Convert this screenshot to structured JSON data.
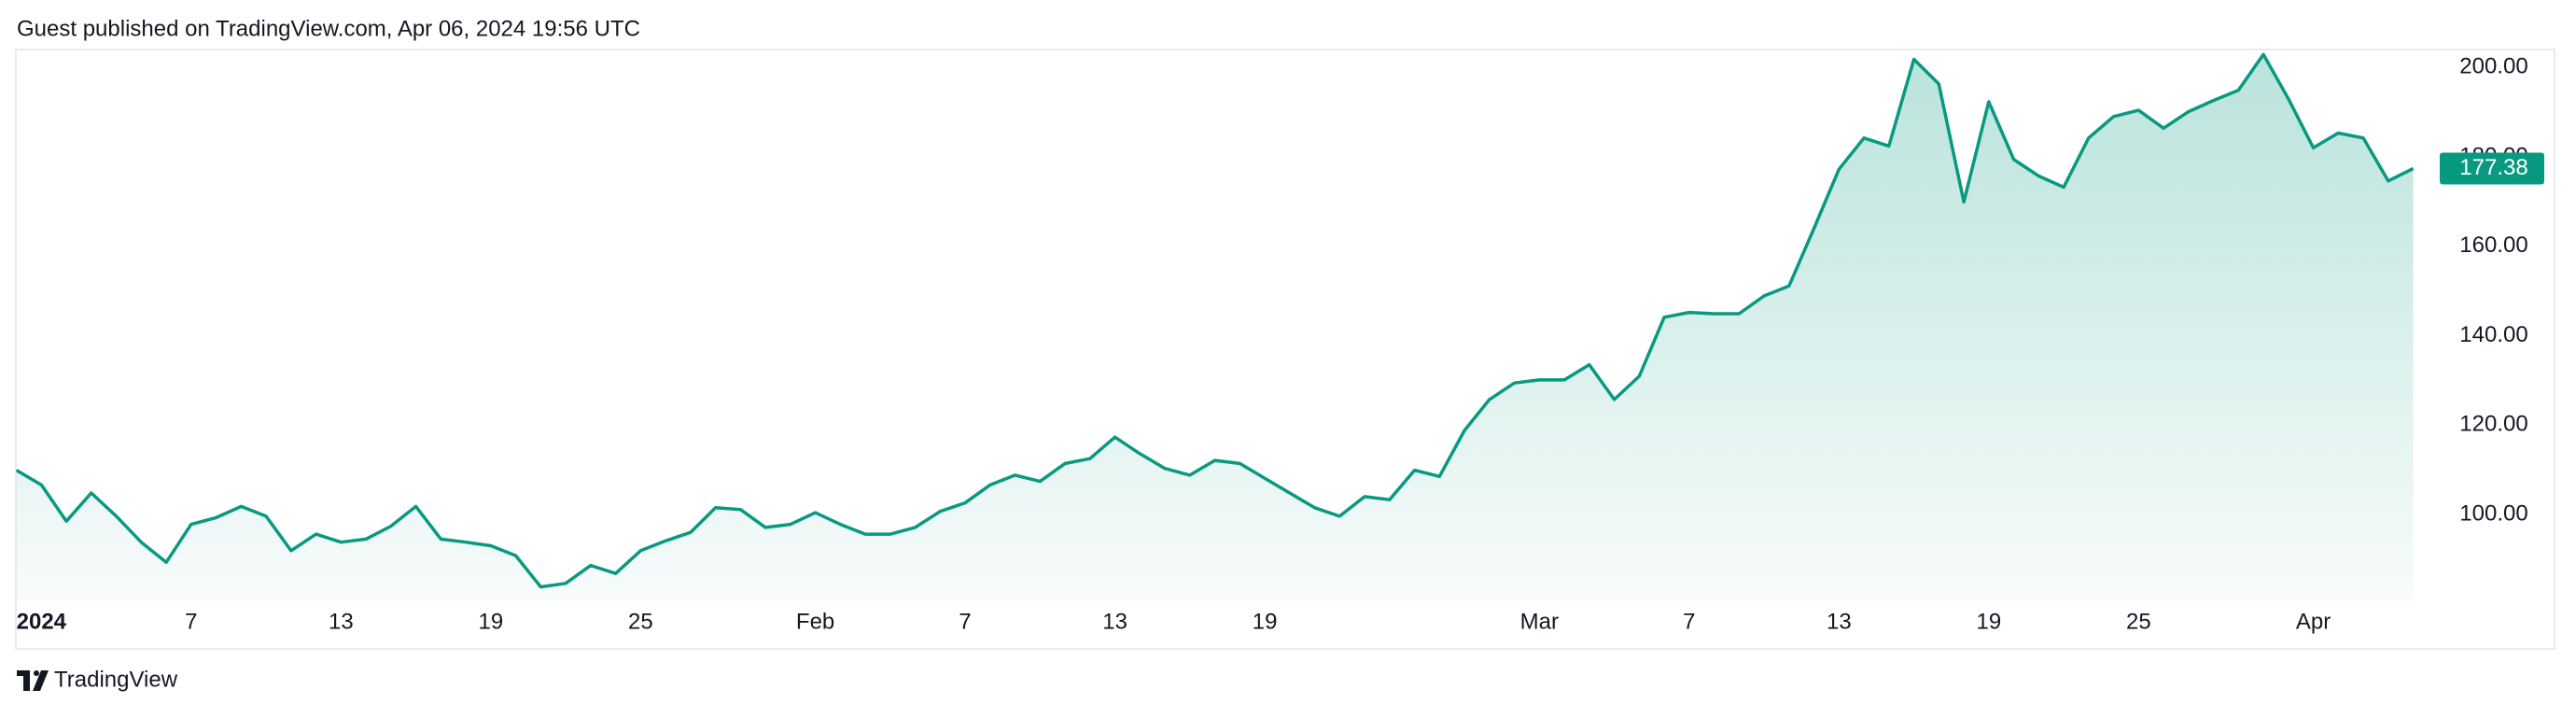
{
  "chart_data": {
    "type": "area",
    "title": "Guest published on TradingView.com, Apr 06, 2024 19:56 UTC",
    "source": "TradingView",
    "color": "#089981",
    "grid": false,
    "categories": [
      null,
      "2024",
      null,
      null,
      null,
      null,
      null,
      "7",
      null,
      null,
      null,
      null,
      null,
      "13",
      null,
      null,
      null,
      null,
      null,
      "19",
      null,
      null,
      null,
      null,
      null,
      "25",
      null,
      null,
      null,
      null,
      null,
      null,
      "Feb",
      null,
      null,
      null,
      null,
      null,
      "7",
      null,
      null,
      null,
      null,
      null,
      "13",
      null,
      null,
      null,
      null,
      null,
      "19",
      null,
      null,
      null,
      null,
      null,
      null,
      null,
      null,
      null,
      null,
      "Mar",
      null,
      null,
      null,
      null,
      null,
      "7",
      null,
      null,
      null,
      null,
      null,
      "13",
      null,
      null,
      null,
      null,
      null,
      "19",
      null,
      null,
      null,
      null,
      null,
      "25",
      null,
      null,
      null,
      null,
      null,
      null,
      "Apr",
      null,
      null,
      null,
      null
    ],
    "values": [
      109.9,
      106.6,
      98.5,
      104.8,
      99.6,
      93.8,
      89.3,
      97.8,
      99.3,
      101.8,
      99.6,
      91.9,
      95.6,
      93.8,
      94.5,
      97.4,
      101.8,
      94.5,
      93.8,
      93.0,
      90.8,
      83.8,
      84.6,
      88.6,
      86.8,
      91.9,
      94.1,
      96.0,
      101.5,
      101.1,
      97.1,
      97.8,
      100.4,
      97.8,
      95.6,
      95.6,
      97.1,
      100.7,
      102.6,
      106.6,
      108.8,
      107.4,
      111.4,
      112.5,
      117.3,
      113.6,
      110.3,
      108.8,
      112.1,
      111.4,
      108.1,
      104.8,
      101.5,
      99.6,
      104.0,
      103.3,
      109.9,
      108.5,
      118.8,
      125.7,
      129.4,
      130.1,
      130.1,
      133.5,
      125.7,
      130.9,
      144.1,
      145.2,
      144.9,
      144.9,
      148.9,
      151.1,
      164.0,
      177.2,
      184.2,
      182.4,
      201.8,
      196.3,
      169.9,
      192.3,
      179.4,
      175.7,
      173.2,
      184.2,
      189.0,
      190.4,
      186.4,
      190.1,
      192.6,
      194.9,
      202.9,
      193.0,
      182.0,
      185.3,
      184.2,
      174.6,
      177.38
    ],
    "ylim": [
      81,
      204
    ],
    "yticks": [
      {
        "value": 100,
        "label": "100.00"
      },
      {
        "value": 120,
        "label": "120.00"
      },
      {
        "value": 140,
        "label": "140.00"
      },
      {
        "value": 160,
        "label": "160.00"
      },
      {
        "value": 180,
        "label": "180.00"
      },
      {
        "value": 200,
        "label": "200.00"
      }
    ]
  }
}
